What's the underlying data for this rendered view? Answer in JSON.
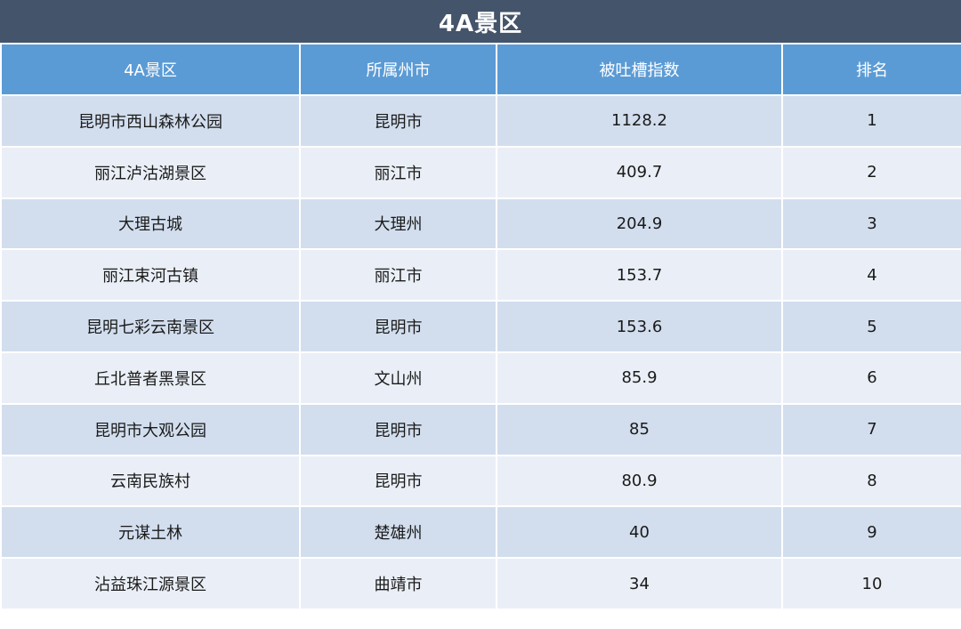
{
  "title": "4A景区",
  "columns": [
    "4A景区",
    "所属州市",
    "被吐槽指数",
    "排名"
  ],
  "rows": [
    [
      "昆明市西山森林公园",
      "昆明市",
      "1128.2",
      "1"
    ],
    [
      "丽江泸沽湖景区",
      "丽江市",
      "409.7",
      "2"
    ],
    [
      "大理古城",
      "大理州",
      "204.9",
      "3"
    ],
    [
      "丽江束河古镇",
      "丽江市",
      "153.7",
      "4"
    ],
    [
      "昆明七彩云南景区",
      "昆明市",
      "153.6",
      "5"
    ],
    [
      "丘北普者黑景区",
      "文山州",
      "85.9",
      "6"
    ],
    [
      "昆明市大观公园",
      "昆明市",
      "85",
      "7"
    ],
    [
      "云南民族村",
      "昆明市",
      "80.9",
      "8"
    ],
    [
      "元谋土林",
      "楚雄州",
      "40",
      "9"
    ],
    [
      "沾益珠江源景区",
      "曲靖市",
      "34",
      "10"
    ]
  ]
}
